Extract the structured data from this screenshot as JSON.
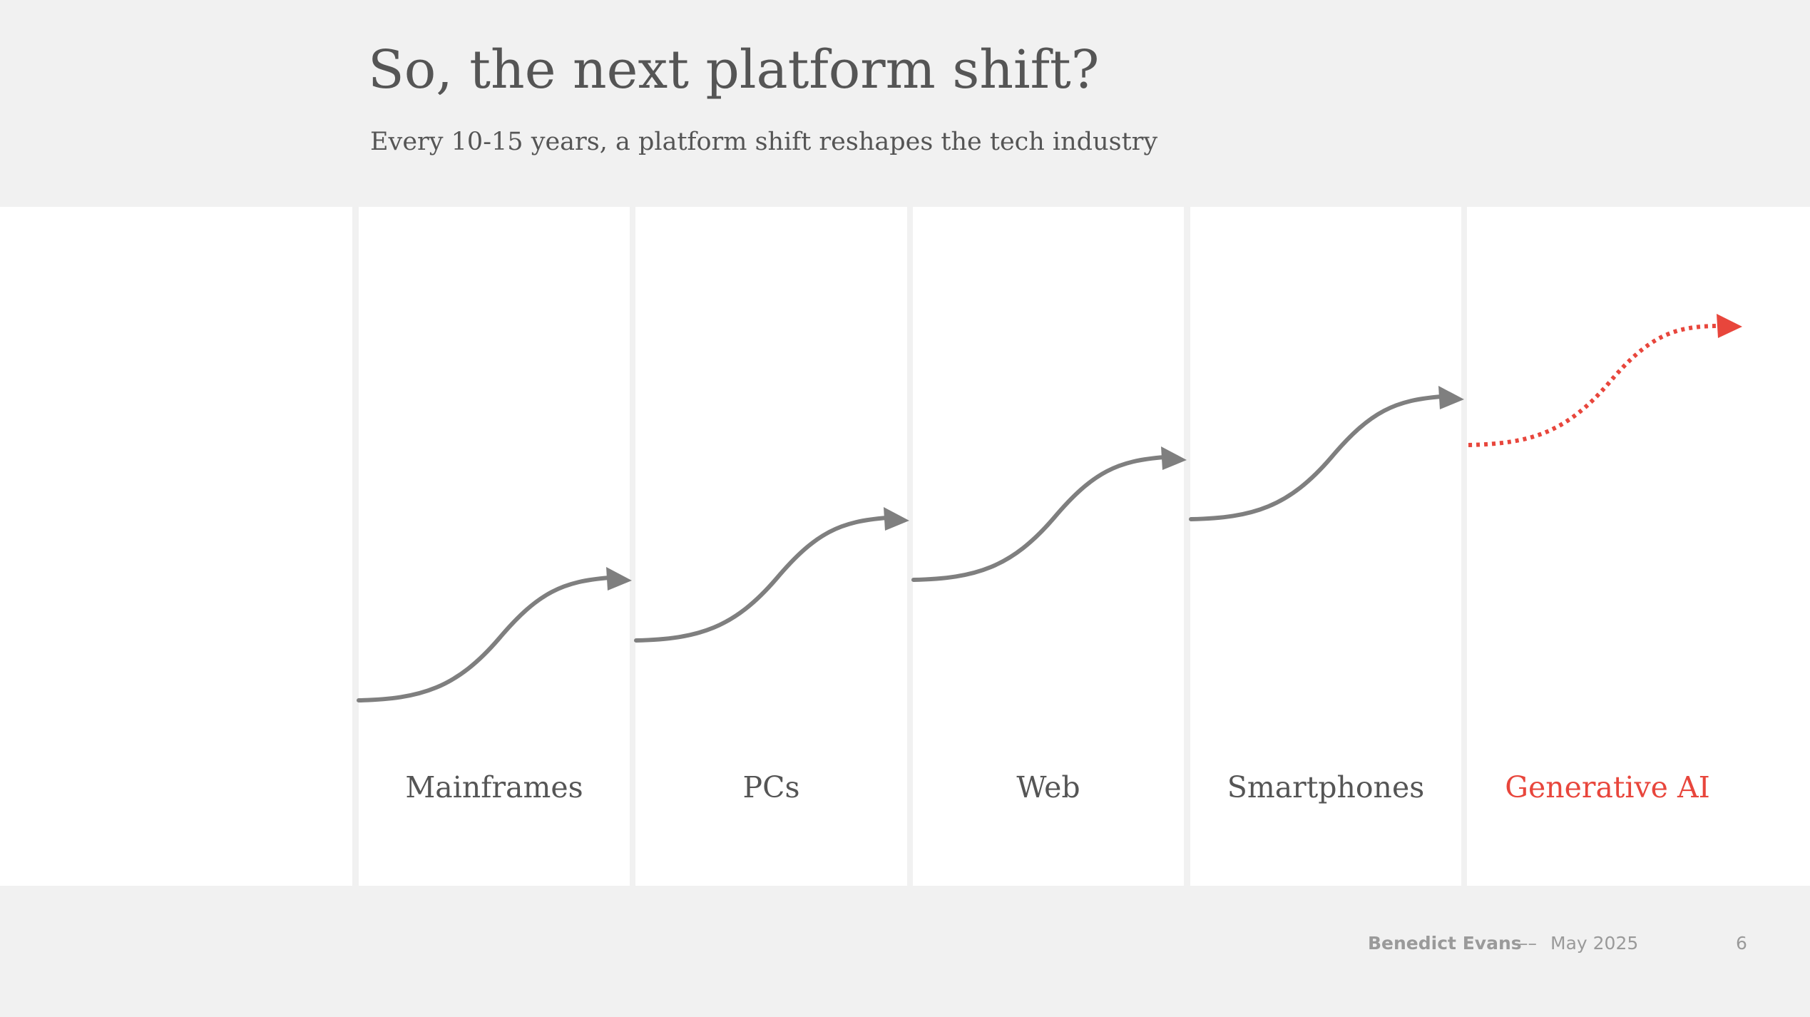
{
  "header": {
    "title": "So, the next platform shift?",
    "subtitle": "Every 10-15 years, a platform shift reshapes the tech industry"
  },
  "platforms": [
    {
      "label": "Mainframes"
    },
    {
      "label": "PCs"
    },
    {
      "label": "Web"
    },
    {
      "label": "Smartphones"
    },
    {
      "label": "Generative AI",
      "highlight": true
    }
  ],
  "colors": {
    "curve": "#7f7f7f",
    "highlight": "#e8463c",
    "text": "#555555",
    "background": "#f1f1f1",
    "column": "#ffffff"
  },
  "footer": {
    "author": "Benedict Evans",
    "separator": "––",
    "date": "May 2025",
    "page": "6"
  }
}
